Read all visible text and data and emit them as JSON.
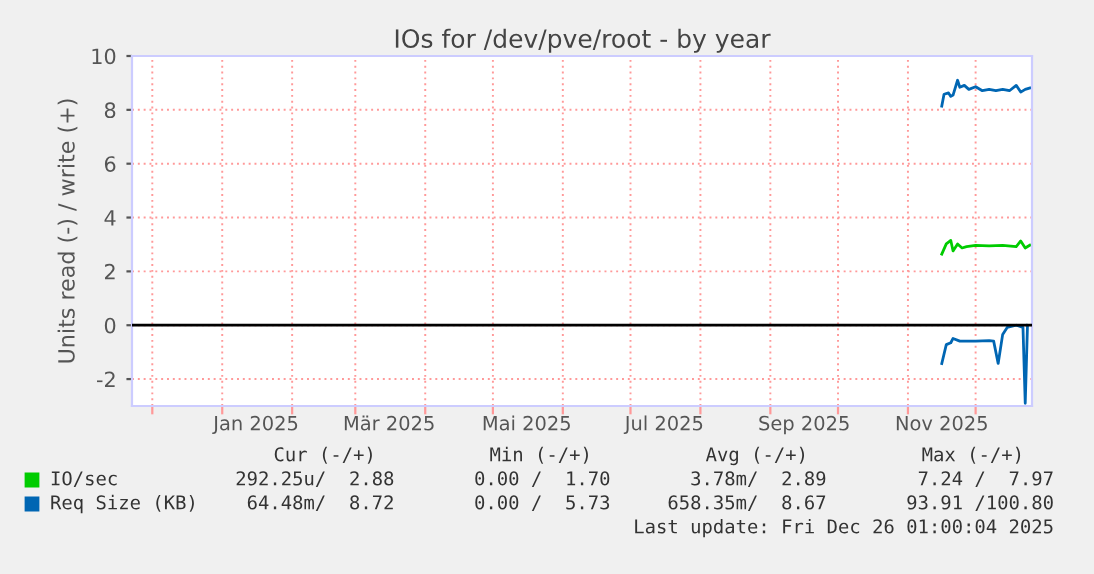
{
  "chart_data": {
    "type": "line",
    "title": "IOs for /dev/pve/root - by year",
    "ylabel": "Units read (-) / write (+)",
    "xlim": [
      "2024-11-22",
      "2025-12-26"
    ],
    "ylim": [
      -3,
      10
    ],
    "yticks": [
      -2,
      0,
      2,
      4,
      6,
      8,
      10
    ],
    "xticks": [
      {
        "value": "2024-12-01",
        "label": null
      },
      {
        "value": "2025-01-01",
        "label": null
      },
      {
        "value": "2025-02-01",
        "label": null
      },
      {
        "value": "2025-03-01",
        "label": null
      },
      {
        "value": "2025-04-01",
        "label": null
      },
      {
        "value": "2025-05-01",
        "label": null
      },
      {
        "value": "2025-06-01",
        "label": null
      },
      {
        "value": "2025-07-01",
        "label": null
      },
      {
        "value": "2025-08-01",
        "label": null
      },
      {
        "value": "2025-09-01",
        "label": null
      },
      {
        "value": "2025-10-01",
        "label": null
      },
      {
        "value": "2025-11-01",
        "label": null
      },
      {
        "value": "2025-12-01",
        "label": null
      },
      {
        "value": "2025-01-16",
        "label": "Jan 2025"
      },
      {
        "value": "2025-03-16",
        "label": "Mär 2025"
      },
      {
        "value": "2025-05-16",
        "label": "Mai 2025"
      },
      {
        "value": "2025-07-16",
        "label": "Jul 2025"
      },
      {
        "value": "2025-09-16",
        "label": "Sep 2025"
      },
      {
        "value": "2025-11-16",
        "label": "Nov 2025"
      }
    ],
    "grid": true,
    "legend": "bottom",
    "ref_lines": [
      {
        "axis": "y",
        "value": 0,
        "color": "#000000"
      }
    ],
    "series": [
      {
        "name": "IO/sec",
        "color": "#00cc00",
        "x": [
          "2025-11-16",
          "2025-11-18",
          "2025-11-20",
          "2025-11-21",
          "2025-11-23",
          "2025-11-25",
          "2025-11-27",
          "2025-12-01",
          "2025-12-07",
          "2025-12-13",
          "2025-12-19",
          "2025-12-21",
          "2025-12-23",
          "2025-12-25"
        ],
        "values": [
          2.64,
          3.02,
          3.15,
          2.76,
          3.02,
          2.87,
          2.92,
          2.97,
          2.95,
          2.97,
          2.92,
          3.13,
          2.87,
          2.97
        ]
      },
      {
        "name": "Req Size (KB)",
        "color": "#0066b3",
        "x": [
          "2025-11-16",
          "2025-11-17",
          "2025-11-19",
          "2025-11-20",
          "2025-11-21",
          "2025-11-23",
          "2025-11-24",
          "2025-11-26",
          "2025-11-28",
          "2025-12-01",
          "2025-12-04",
          "2025-12-07",
          "2025-12-10",
          "2025-12-13",
          "2025-12-16",
          "2025-12-19",
          "2025-12-21",
          "2025-12-23",
          "2025-12-25"
        ],
        "values": [
          8.14,
          8.58,
          8.63,
          8.5,
          8.55,
          9.1,
          8.84,
          8.91,
          8.76,
          8.86,
          8.71,
          8.76,
          8.71,
          8.76,
          8.71,
          8.91,
          8.66,
          8.76,
          8.81
        ]
      },
      {
        "color": "#0066b3",
        "x": [
          "2025-11-16",
          "2025-11-18",
          "2025-11-20",
          "2025-11-21",
          "2025-11-24",
          "2025-12-01",
          "2025-12-07",
          "2025-12-09",
          "2025-12-11",
          "2025-12-13",
          "2025-12-15",
          "2025-12-19",
          "2025-12-22",
          "2025-12-23",
          "2025-12-24"
        ],
        "values": [
          -1.42,
          -0.72,
          -0.65,
          -0.49,
          -0.59,
          -0.59,
          -0.57,
          -0.59,
          -1.42,
          -0.34,
          -0.08,
          0,
          -0.08,
          -2.9,
          0
        ]
      }
    ],
    "annotations": [
      "Cur (-/+)          Min (-/+)          Avg (-/+)          Max (-/+)",
      "292.25u/  2.88       0.00 /  1.70       3.78m/  2.89        7.24 /  7.97",
      " 64.48m/  8.72       0.00 /  5.73     658.35m/  8.67       93.91 /100.80",
      "Last update: Fri Dec 26 01:00:04 2025"
    ]
  }
}
